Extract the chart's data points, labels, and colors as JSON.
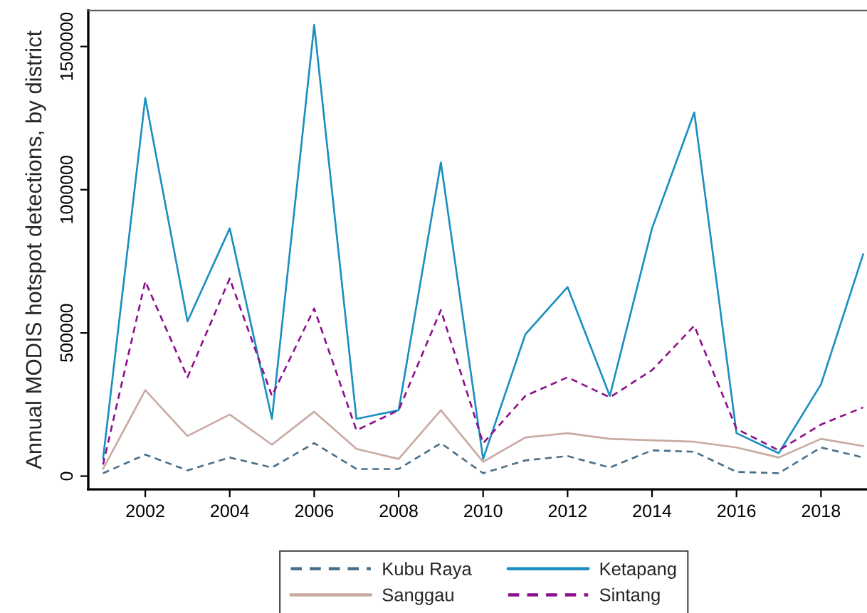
{
  "chart_data": {
    "type": "line",
    "ylabel": "Annual MODIS hotspot detections, by district",
    "x": [
      2001,
      2002,
      2003,
      2004,
      2005,
      2006,
      2007,
      2008,
      2009,
      2010,
      2011,
      2012,
      2013,
      2014,
      2015,
      2016,
      2017,
      2018,
      2019
    ],
    "xlim": [
      2000.65,
      2019.09
    ],
    "xticks": [
      2002,
      2004,
      2006,
      2008,
      2010,
      2012,
      2014,
      2016,
      2018
    ],
    "ylim": [
      -46000,
      1626000
    ],
    "yticks": [
      0,
      500000,
      1000000,
      1500000
    ],
    "grid": false,
    "legend": "bottom",
    "marker": "none",
    "series": [
      {
        "name": "Kubu Raya",
        "color": "#4a7089",
        "line_style": "dashed",
        "values": [
          10000,
          75000,
          20000,
          65000,
          30000,
          115000,
          25000,
          25000,
          115000,
          10000,
          55000,
          70000,
          30000,
          90000,
          85000,
          15000,
          10000,
          100000,
          65000
        ]
      },
      {
        "name": "Ketapang",
        "color": "#1a8fc0",
        "line_style": "solid",
        "values": [
          60000,
          1320000,
          540000,
          865000,
          200000,
          1575000,
          200000,
          230000,
          1095000,
          60000,
          495000,
          660000,
          280000,
          865000,
          1270000,
          150000,
          80000,
          320000,
          775000
        ]
      },
      {
        "name": "Sanggau",
        "color": "#c9aaa3",
        "line_style": "solid",
        "values": [
          25000,
          300000,
          140000,
          215000,
          110000,
          225000,
          95000,
          60000,
          230000,
          50000,
          135000,
          150000,
          130000,
          125000,
          120000,
          100000,
          65000,
          130000,
          105000
        ]
      },
      {
        "name": "Sintang",
        "color": "#8e0f8e",
        "line_style": "dashed",
        "values": [
          40000,
          680000,
          345000,
          690000,
          280000,
          585000,
          160000,
          230000,
          580000,
          115000,
          280000,
          345000,
          275000,
          370000,
          525000,
          165000,
          90000,
          180000,
          240000
        ]
      }
    ]
  }
}
